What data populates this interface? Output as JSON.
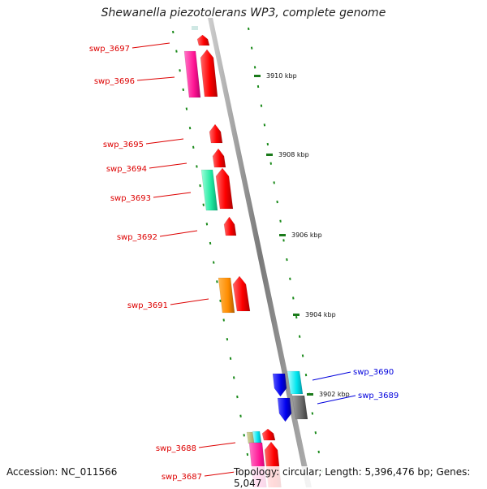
{
  "title": "Shewanella piezotolerans WP3, complete genome",
  "footer": {
    "accession": "Accession: NC_011566",
    "summary": "Topology: circular; Length: 5,396,476 bp; Genes: 5,047"
  },
  "scale_labels": [
    "3910 kbp",
    "3908 kbp",
    "3906 kbp",
    "3904 kbp",
    "3902 kbp"
  ],
  "genes": [
    {
      "id": "swp_3697",
      "color": "#dd0000"
    },
    {
      "id": "swp_3696",
      "color": "#dd0000"
    },
    {
      "id": "swp_3695",
      "color": "#dd0000"
    },
    {
      "id": "swp_3694",
      "color": "#dd0000"
    },
    {
      "id": "swp_3693",
      "color": "#dd0000"
    },
    {
      "id": "swp_3692",
      "color": "#dd0000"
    },
    {
      "id": "swp_3691",
      "color": "#dd0000"
    },
    {
      "id": "swp_3690",
      "color": "#0000dd"
    },
    {
      "id": "swp_3689",
      "color": "#0000dd"
    },
    {
      "id": "swp_3688",
      "color": "#dd0000"
    },
    {
      "id": "swp_3687",
      "color": "#dd0000"
    }
  ]
}
